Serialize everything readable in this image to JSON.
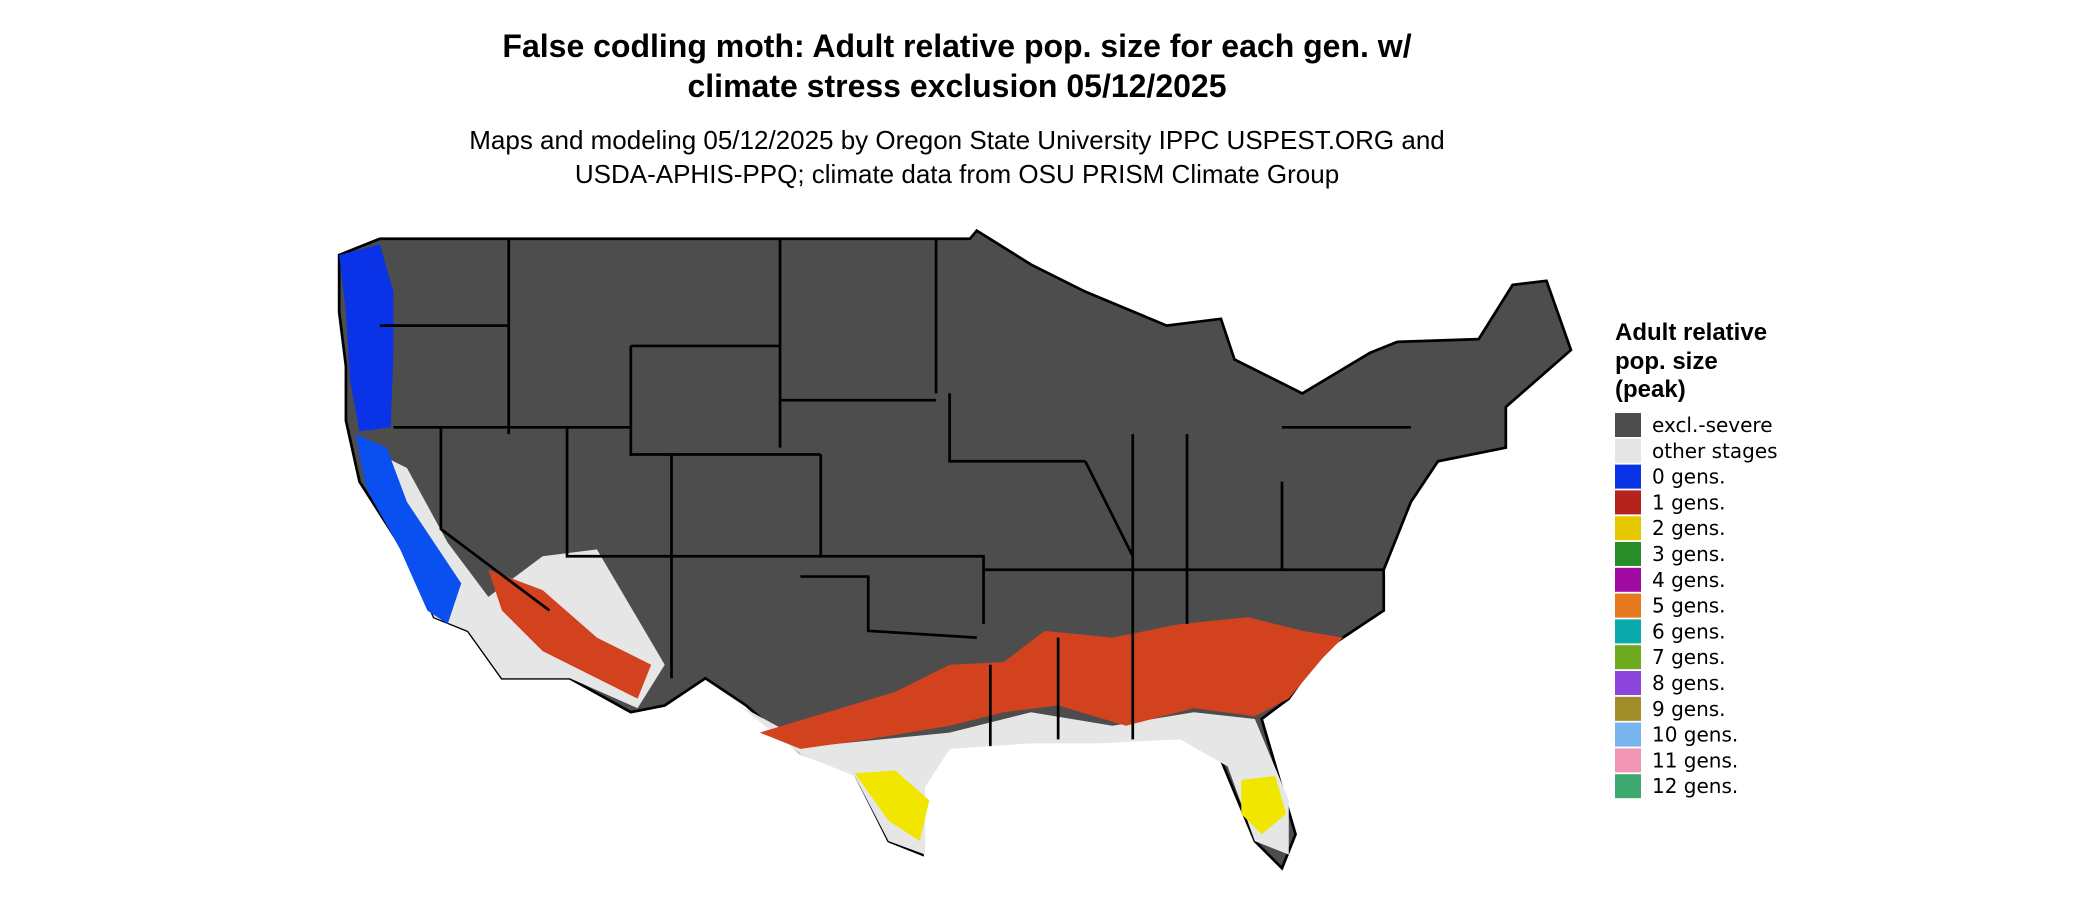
{
  "header": {
    "title": [
      "False codling moth: Adult relative pop. size for each gen. w/",
      "climate stress exclusion 05/12/2025"
    ],
    "subtitle": [
      "Maps and modeling 05/12/2025 by Oregon State University IPPC USPEST.ORG and",
      "USDA-APHIS-PPQ; climate data from OSU PRISM Climate Group"
    ]
  },
  "legend": {
    "title": [
      "Adult relative",
      "pop. size",
      "(peak)"
    ],
    "items": [
      {
        "label": "excl.-severe",
        "color": "#4d4d4d"
      },
      {
        "label": "other stages",
        "color": "#e6e6e6"
      },
      {
        "label": "0 gens.",
        "color": "#0a32e6"
      },
      {
        "label": "1 gens.",
        "color": "#b4231e"
      },
      {
        "label": "2 gens.",
        "color": "#e6c800"
      },
      {
        "label": "3 gens.",
        "color": "#288c28"
      },
      {
        "label": "4 gens.",
        "color": "#a00aa0"
      },
      {
        "label": "5 gens.",
        "color": "#e6781e"
      },
      {
        "label": "6 gens.",
        "color": "#0aaaaa"
      },
      {
        "label": "7 gens.",
        "color": "#6eaa1e"
      },
      {
        "label": "8 gens.",
        "color": "#8c46dc"
      },
      {
        "label": "9 gens.",
        "color": "#a08c28"
      },
      {
        "label": "10 gens.",
        "color": "#78b4f0"
      },
      {
        "label": "11 gens.",
        "color": "#f096b4"
      },
      {
        "label": "12 gens.",
        "color": "#3caa6e"
      }
    ]
  }
}
